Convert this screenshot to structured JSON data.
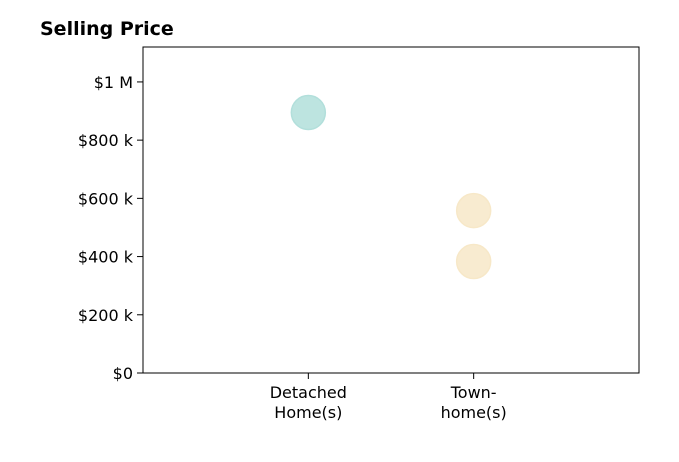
{
  "chart_data": {
    "type": "scatter",
    "title": "Selling Price",
    "xlabel": "",
    "ylabel": "",
    "categories": [
      {
        "lines": [
          "Detached",
          "Home(s)"
        ]
      },
      {
        "lines": [
          "Town-",
          "home(s)"
        ]
      }
    ],
    "xlim": [
      -1,
      2
    ],
    "ylim": [
      0,
      1120000
    ],
    "yticks": [
      {
        "value": 0,
        "label": "$0"
      },
      {
        "value": 200000,
        "label": "$200 k"
      },
      {
        "value": 400000,
        "label": "$400 k"
      },
      {
        "value": 600000,
        "label": "$600 k"
      },
      {
        "value": 800000,
        "label": "$800 k"
      },
      {
        "value": 1000000,
        "label": "$1 M"
      }
    ],
    "points": [
      {
        "category_index": 0,
        "y": 895000,
        "color": "#b2dfdb"
      },
      {
        "category_index": 1,
        "y": 558000,
        "color": "#f7e8c8"
      },
      {
        "category_index": 1,
        "y": 383000,
        "color": "#f7e8c8"
      }
    ],
    "grid": false,
    "legend": "none"
  }
}
